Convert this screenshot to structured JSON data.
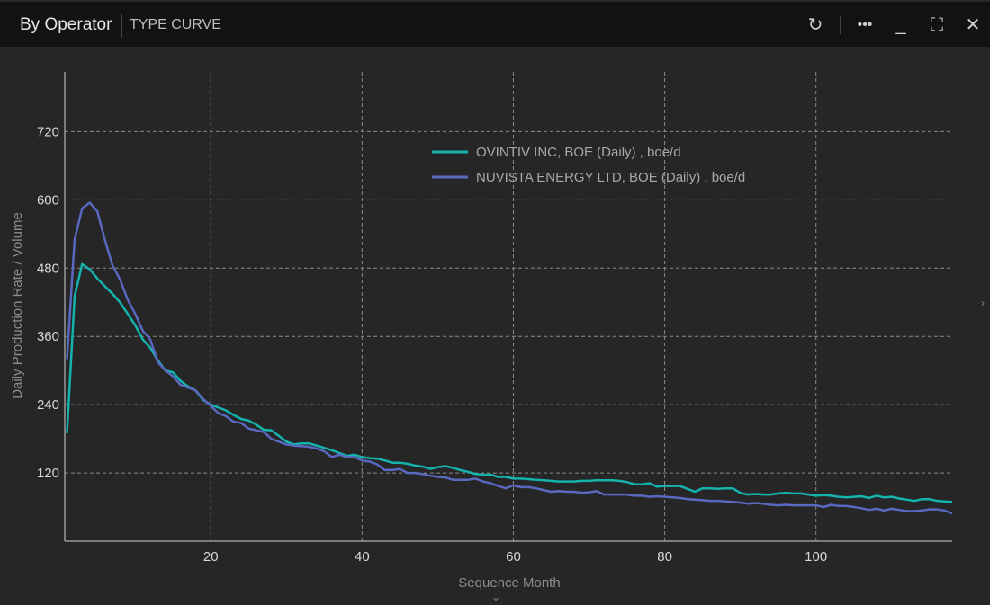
{
  "header": {
    "title": "By Operator",
    "subtitle": "TYPE CURVE"
  },
  "icons": [
    "refresh-icon",
    "more-icon",
    "minimize-icon",
    "maximize-icon",
    "close-icon"
  ],
  "chart_data": {
    "type": "line",
    "xlabel": "Sequence Month",
    "ylabel": "Daily Production Rate / Volume",
    "xlim": [
      0.7,
      118
    ],
    "ylim": [
      0,
      825
    ],
    "xticks": [
      20,
      40,
      60,
      80,
      100
    ],
    "yticks": [
      120,
      240,
      360,
      480,
      600,
      720
    ],
    "grid": true,
    "legend_position": "top-center",
    "series": [
      {
        "name": "OVINTIV INC, BOE (Daily) , boe/d",
        "color": "#14b3ad",
        "values": [
          190,
          430,
          487,
          478,
          462,
          448,
          435,
          420,
          400,
          380,
          355,
          340,
          318,
          300,
          297,
          282,
          272,
          265,
          248,
          240,
          235,
          230,
          222,
          215,
          212,
          205,
          196,
          195,
          185,
          175,
          170,
          172,
          172,
          168,
          164,
          160,
          155,
          150,
          152,
          148,
          146,
          145,
          142,
          138,
          138,
          136,
          133,
          131,
          127,
          130,
          132,
          129,
          125,
          122,
          118,
          117,
          117,
          113,
          113,
          110,
          110,
          109,
          108,
          107,
          106,
          105,
          105,
          105,
          106,
          106,
          107,
          107,
          107,
          106,
          104,
          100,
          100,
          102,
          96,
          97,
          97,
          97,
          92,
          87,
          93,
          93,
          92,
          93,
          93,
          85,
          82,
          83,
          82,
          82,
          84,
          85,
          84,
          84,
          82,
          80,
          81,
          80,
          78,
          77,
          78,
          79,
          76,
          80,
          77,
          78,
          75,
          73,
          71,
          74,
          74,
          71,
          70,
          69
        ]
      },
      {
        "name": "NUVISTA ENERGY LTD, BOE (Daily) , boe/d",
        "color": "#5a68c0",
        "values": [
          320,
          530,
          585,
          595,
          580,
          530,
          485,
          460,
          425,
          400,
          370,
          355,
          315,
          300,
          290,
          275,
          270,
          265,
          250,
          238,
          225,
          220,
          210,
          208,
          198,
          195,
          192,
          180,
          175,
          170,
          168,
          167,
          166,
          163,
          158,
          148,
          152,
          148,
          148,
          142,
          140,
          135,
          125,
          125,
          127,
          120,
          120,
          118,
          115,
          113,
          112,
          108,
          108,
          108,
          110,
          105,
          102,
          97,
          93,
          98,
          95,
          95,
          93,
          90,
          87,
          88,
          87,
          87,
          85,
          86,
          88,
          82,
          82,
          82,
          82,
          80,
          80,
          78,
          79,
          78,
          77,
          76,
          74,
          73,
          72,
          71,
          71,
          70,
          69,
          68,
          66,
          67,
          66,
          64,
          63,
          64,
          63,
          63,
          63,
          63,
          60,
          64,
          62,
          62,
          60,
          58,
          55,
          57,
          54,
          57,
          55,
          53,
          53,
          54,
          56,
          56,
          54,
          49
        ]
      }
    ]
  }
}
